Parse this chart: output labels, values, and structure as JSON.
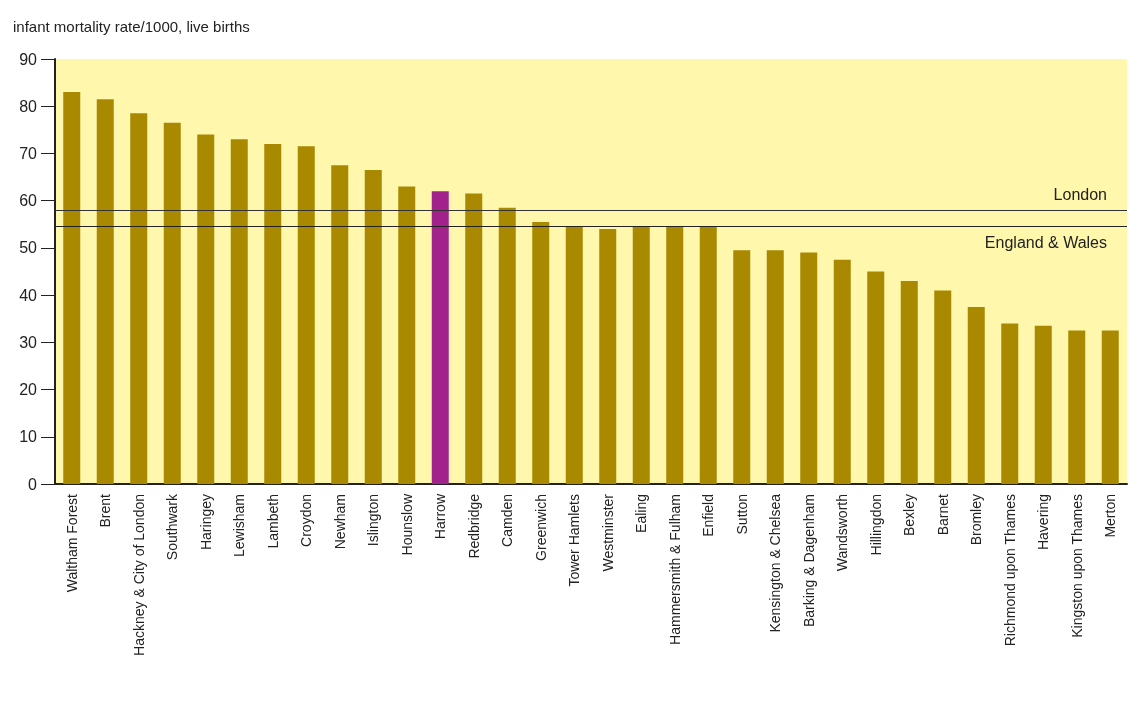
{
  "chart_data": {
    "type": "bar",
    "ylabel": "infant mortality rate/1000, live births",
    "categories": [
      "Waltham Forest",
      "Brent",
      "Hackney & City of London",
      "Southwark",
      "Haringey",
      "Lewisham",
      "Lambeth",
      "Croydon",
      "Newham",
      "Islington",
      "Hounslow",
      "Harrow",
      "Redbridge",
      "Camden",
      "Greenwich",
      "Tower Hamlets",
      "Westminster",
      "Ealing",
      "Hammersmith & Fulham",
      "Enfield",
      "Sutton",
      "Kensington & Chelsea",
      "Barking & Dagenham",
      "Wandsworth",
      "Hillingdon",
      "Bexley",
      "Barnet",
      "Bromley",
      "Richmond upon Thames",
      "Havering",
      "Kingston upon Thames",
      "Merton"
    ],
    "values": [
      83,
      81.5,
      78.5,
      76.5,
      74,
      73,
      72,
      71.5,
      67.5,
      66.5,
      63,
      62,
      61.5,
      58.5,
      55.5,
      54.5,
      54,
      54.5,
      54.5,
      54.5,
      49.5,
      49.5,
      49,
      47.5,
      45,
      43,
      41,
      37.5,
      34,
      33.5,
      32.5,
      32.5
    ],
    "colors": [
      "#a98900",
      "#a98900",
      "#a98900",
      "#a98900",
      "#a98900",
      "#a98900",
      "#a98900",
      "#a98900",
      "#a98900",
      "#a98900",
      "#a98900",
      "#a0228a",
      "#a98900",
      "#a98900",
      "#a98900",
      "#a98900",
      "#a98900",
      "#a98900",
      "#a98900",
      "#a98900",
      "#a98900",
      "#a98900",
      "#a98900",
      "#a98900",
      "#a98900",
      "#a98900",
      "#a98900",
      "#a98900",
      "#a98900",
      "#a98900",
      "#a98900",
      "#a98900"
    ],
    "ylim": [
      0,
      90
    ],
    "yticks": [
      0,
      10,
      20,
      30,
      40,
      50,
      60,
      70,
      80,
      90
    ],
    "grid": false,
    "ref_lines": [
      {
        "axis": "y",
        "value": 58,
        "label": "London",
        "color": "#333333"
      },
      {
        "axis": "y",
        "value": 54.5,
        "label": "England & Wales",
        "color": "#222222"
      }
    ]
  }
}
